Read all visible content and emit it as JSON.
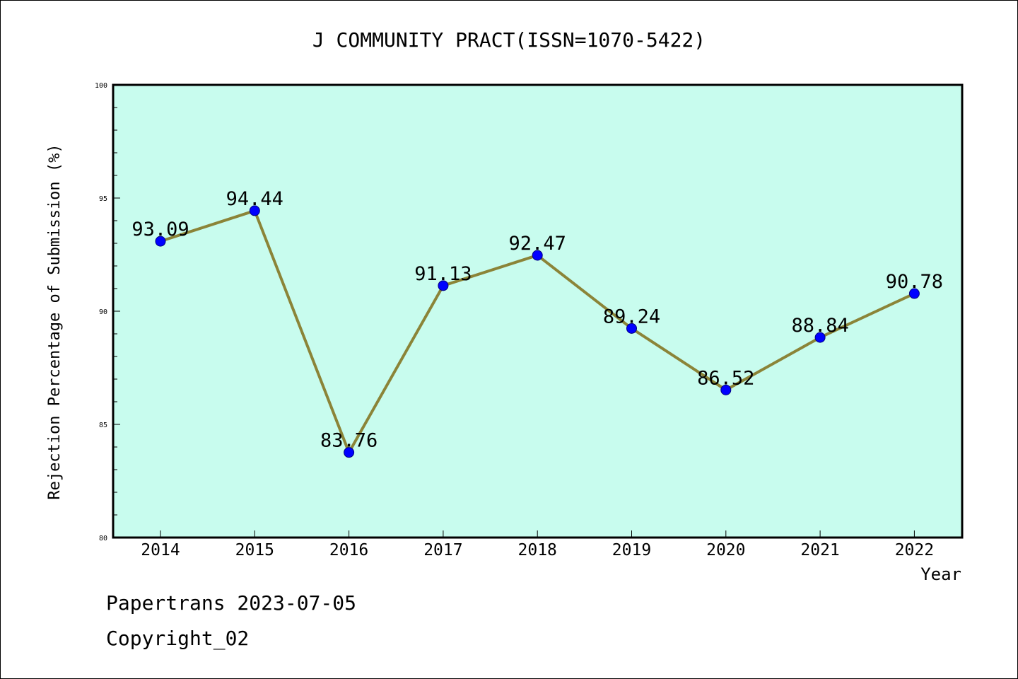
{
  "chart_data": {
    "type": "line",
    "title": "J COMMUNITY PRACT(ISSN=1070-5422)",
    "xlabel": "Year",
    "ylabel": "Rejection Percentage of Submission (%)",
    "categories": [
      "2014",
      "2015",
      "2016",
      "2017",
      "2018",
      "2019",
      "2020",
      "2021",
      "2022"
    ],
    "values": [
      93.09,
      94.44,
      83.76,
      91.13,
      92.47,
      89.24,
      86.52,
      88.84,
      90.78
    ],
    "value_labels": [
      "93.09",
      "94.44",
      "83.76",
      "91.13",
      "92.47",
      "89.24",
      "86.52",
      "88.84",
      "90.78"
    ],
    "ylim": [
      80,
      100
    ],
    "yticks": [
      80,
      85,
      90,
      95,
      100
    ],
    "ytick_labels": [
      "80",
      "85",
      "90",
      "95",
      "100"
    ],
    "grid": false,
    "legend": "none",
    "colors": {
      "plot_background": "#c8fcee",
      "line": "#8b8438",
      "marker": "#0000ff",
      "marker_edge": "#000080"
    }
  },
  "footer": {
    "line1": "Papertrans 2023-07-05",
    "line2": "Copyright_02"
  }
}
